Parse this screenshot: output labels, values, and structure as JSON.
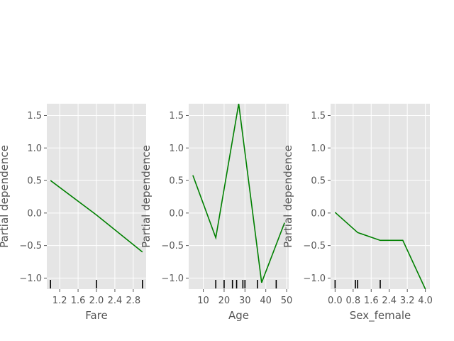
{
  "figure": {
    "background": "#ffffff",
    "panel_background": "#e5e5e5",
    "grid_color": "#ffffff",
    "line_color": "#008000",
    "rug_color": "#000000"
  },
  "chart_data": [
    {
      "type": "line",
      "title": "",
      "xlabel": "Fare",
      "ylabel": "Partial dependence",
      "xlim": [
        0.92,
        3.08
      ],
      "ylim": [
        -1.17,
        1.68
      ],
      "xticks": [
        1.2,
        1.6,
        2.0,
        2.4,
        2.8
      ],
      "xtick_labels": [
        "1.2",
        "1.6",
        "2.0",
        "2.4",
        "2.8"
      ],
      "yticks": [
        -1.0,
        -0.5,
        0.0,
        0.5,
        1.0,
        1.5
      ],
      "ytick_labels": [
        "−1.0",
        "−0.5",
        "0.0",
        "0.5",
        "1.0",
        "1.5"
      ],
      "grid": true,
      "series": [
        {
          "x": [
            1.0,
            2.0,
            3.0
          ],
          "y": [
            0.5,
            -0.03,
            -0.6
          ]
        }
      ],
      "rug": [
        1.0,
        2.0,
        3.0
      ]
    },
    {
      "type": "line",
      "title": "",
      "xlabel": "Age",
      "ylabel": "Partial dependence",
      "xlim": [
        3,
        51
      ],
      "ylim": [
        -1.17,
        1.68
      ],
      "xticks": [
        10,
        20,
        30,
        40,
        50
      ],
      "xtick_labels": [
        "10",
        "20",
        "30",
        "40",
        "50"
      ],
      "yticks": [
        -1.0,
        -0.5,
        0.0,
        0.5,
        1.0,
        1.5
      ],
      "ytick_labels": [
        "−1.0",
        "−0.5",
        "0.0",
        "0.5",
        "1.0",
        "1.5"
      ],
      "grid": true,
      "series": [
        {
          "x": [
            5,
            16,
            27,
            38,
            49
          ],
          "y": [
            0.58,
            -0.38,
            1.68,
            -1.07,
            -0.15
          ]
        }
      ],
      "rug": [
        16,
        20,
        24,
        26,
        29,
        30,
        36,
        45
      ]
    },
    {
      "type": "line",
      "title": "",
      "xlabel": "Sex_female",
      "ylabel": "Partial dependence",
      "xlim": [
        -0.2,
        4.2
      ],
      "ylim": [
        -1.17,
        1.68
      ],
      "xticks": [
        0.0,
        0.8,
        1.6,
        2.4,
        3.2,
        4.0
      ],
      "xtick_labels": [
        "0.0",
        "0.8",
        "1.6",
        "2.4",
        "3.2",
        "4.0"
      ],
      "yticks": [
        -1.0,
        -0.5,
        0.0,
        0.5,
        1.0,
        1.5
      ],
      "ytick_labels": [
        "−1.0",
        "−0.5",
        "0.0",
        "0.5",
        "1.0",
        "1.5"
      ],
      "grid": true,
      "series": [
        {
          "x": [
            0,
            1,
            2,
            3,
            4
          ],
          "y": [
            0.01,
            -0.3,
            -0.42,
            -0.42,
            -1.17
          ]
        }
      ],
      "rug": [
        0,
        0.9,
        1.0,
        2.0
      ]
    }
  ]
}
